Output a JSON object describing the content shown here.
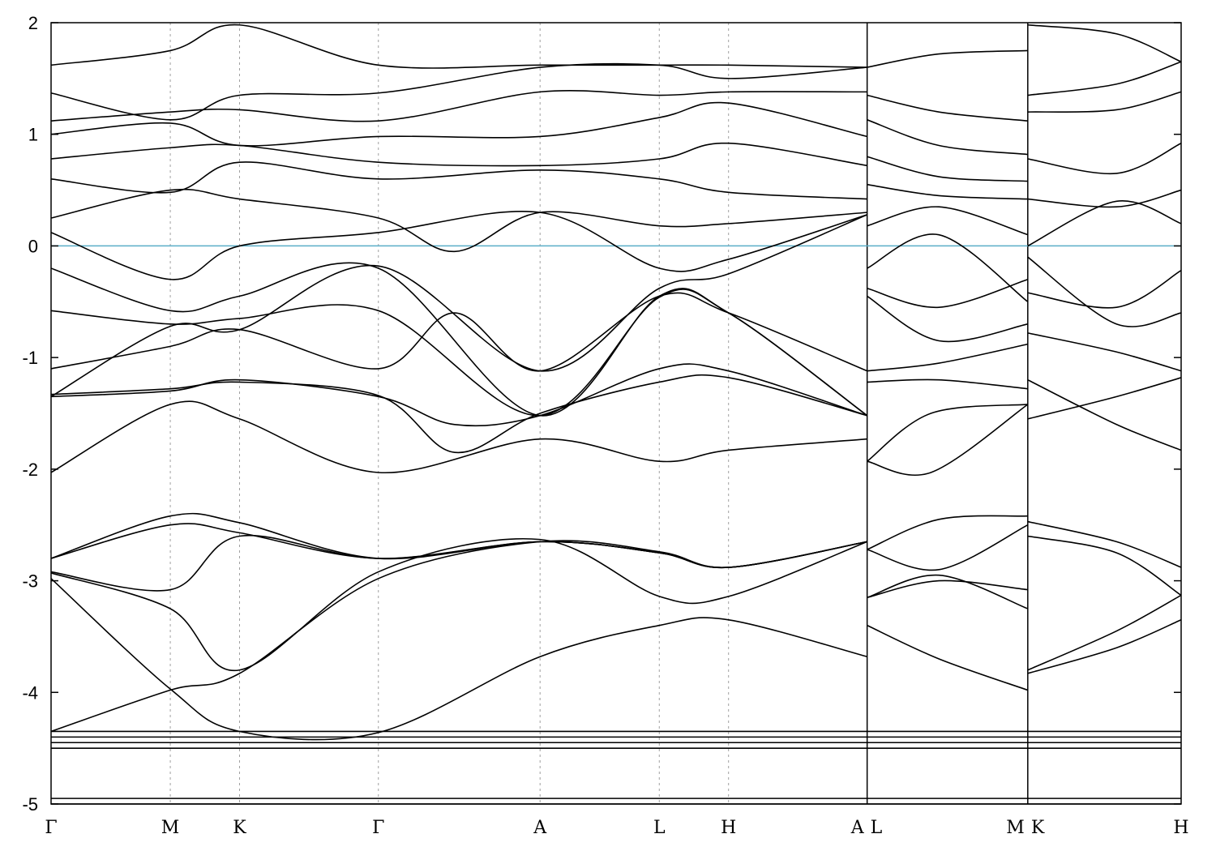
{
  "chart_data": {
    "type": "line",
    "title": "",
    "xlabel": "",
    "ylabel": "",
    "ylim": [
      -5,
      2
    ],
    "yticks": [
      2,
      1,
      0,
      -1,
      -2,
      -3,
      -4,
      -5
    ],
    "ytick_labels": [
      "2",
      "1",
      "0",
      "-1",
      "-2",
      "-3",
      "-4",
      "-5"
    ],
    "fermi_level": 0,
    "xlim": [
      0,
      14
    ],
    "high_symmetry_points": [
      {
        "label": "Γ",
        "x": 0
      },
      {
        "label": "M",
        "x": 1.477
      },
      {
        "label": "K",
        "x": 2.335
      },
      {
        "label": "Γ",
        "x": 4.055
      },
      {
        "label": "A",
        "x": 6.058
      },
      {
        "label": "L",
        "x": 7.535
      },
      {
        "label": "H",
        "x": 8.393
      },
      {
        "label": "A",
        "x": 10.11
      },
      {
        "label": "L",
        "x": 10.11
      },
      {
        "label": "M",
        "x": 12.1
      },
      {
        "label": "K",
        "x": 12.1
      },
      {
        "label": "H",
        "x": 14.0
      }
    ],
    "discontinuities": [
      10.11,
      12.1
    ],
    "grid": "vertical dashed at high-symmetry points",
    "legend": "none",
    "colors": {
      "bands": "#000000",
      "fermi": "#5aaec8",
      "grid": "#a0a0a0"
    },
    "series": [
      {
        "x": [
          0,
          1.477,
          2.335,
          4.055,
          6.058,
          7.535,
          8.393,
          10.11
        ],
        "values": [
          -4.35,
          -3.98,
          -3.83,
          -2.98,
          -2.65,
          -2.74,
          -2.88,
          -2.65
        ]
      },
      {
        "x": [
          0,
          1.477,
          2.335,
          4.055,
          6.058,
          7.535,
          8.393,
          10.11
        ],
        "values": [
          -2.98,
          -3.97,
          -4.35,
          -4.36,
          -3.68,
          -3.4,
          -3.35,
          -3.68
        ]
      },
      {
        "x": [
          0,
          1.477,
          2.335,
          4.055,
          6.058,
          7.535,
          8.393,
          10.11
        ],
        "values": [
          -2.93,
          -3.25,
          -3.8,
          -2.92,
          -2.63,
          -3.14,
          -3.14,
          -2.65
        ]
      },
      {
        "x": [
          0,
          1.477,
          2.335,
          4.055,
          6.058,
          7.535,
          8.393,
          10.11
        ],
        "values": [
          -2.92,
          -3.08,
          -2.6,
          -2.8,
          -2.65,
          -2.75,
          -2.88,
          -2.65
        ]
      },
      {
        "x": [
          0,
          1.477,
          2.335,
          4.055,
          6.058,
          7.535,
          8.393,
          10.11
        ],
        "values": [
          -2.8,
          -2.42,
          -2.48,
          -2.8,
          -2.65,
          -2.75,
          -2.88,
          -2.65
        ]
      },
      {
        "x": [
          0,
          1.477,
          2.335,
          4.055,
          6.058,
          7.535,
          8.393,
          10.11
        ],
        "values": [
          -2.8,
          -2.5,
          -2.57,
          -2.8,
          -2.65,
          -2.75,
          -2.88,
          -2.65
        ]
      },
      {
        "x": [
          0,
          1.477,
          2.335,
          4.055,
          6.058,
          7.535,
          8.393,
          10.11
        ],
        "values": [
          -2.03,
          -1.42,
          -1.55,
          -2.03,
          -1.73,
          -1.93,
          -1.83,
          -1.73
        ]
      },
      {
        "x": [
          0,
          1.477,
          2.335,
          4.055,
          5.0,
          6.058,
          7.535,
          8.393,
          10.11
        ],
        "values": [
          -1.35,
          -1.3,
          -1.2,
          -1.35,
          -1.6,
          -1.52,
          -1.1,
          -1.12,
          -1.52
        ]
      },
      {
        "x": [
          0,
          1.477,
          2.335,
          4.055,
          5.0,
          6.058,
          7.535,
          8.393,
          10.11
        ],
        "values": [
          -1.33,
          -1.28,
          -1.22,
          -1.34,
          -1.85,
          -1.5,
          -1.22,
          -1.18,
          -1.52
        ]
      },
      {
        "x": [
          0,
          1.477,
          2.335,
          4.055,
          5.0,
          6.058,
          7.535,
          8.393,
          10.11
        ],
        "values": [
          -1.1,
          -0.9,
          -0.75,
          -1.1,
          -0.6,
          -1.12,
          -0.45,
          -0.6,
          -1.12
        ]
      },
      {
        "x": [
          0,
          1.477,
          2.335,
          4.055,
          6.058,
          7.535,
          8.393,
          10.11
        ],
        "values": [
          -0.58,
          -0.7,
          -0.65,
          -0.58,
          -1.52,
          -0.46,
          -0.6,
          -1.52
        ]
      },
      {
        "x": [
          0,
          1.477,
          2.335,
          4.055,
          6.058,
          7.535,
          8.393,
          10.11
        ],
        "values": [
          -0.2,
          -0.58,
          -0.45,
          -0.2,
          -1.52,
          -0.45,
          -0.6,
          -1.52
        ]
      },
      {
        "x": [
          0,
          1.477,
          2.335,
          4.055,
          6.058,
          7.535,
          8.393,
          10.11
        ],
        "values": [
          -1.35,
          -0.72,
          -0.75,
          -0.18,
          -1.12,
          -0.38,
          -0.25,
          0.28
        ]
      },
      {
        "x": [
          0,
          1.477,
          2.335,
          4.055,
          6.058,
          7.535,
          8.393,
          10.11
        ],
        "values": [
          0.12,
          -0.3,
          0.0,
          0.12,
          0.3,
          -0.2,
          -0.12,
          0.28
        ]
      },
      {
        "x": [
          0,
          1.477,
          2.335,
          4.055,
          5.0,
          6.058,
          7.535,
          8.393,
          10.11
        ],
        "values": [
          0.25,
          0.5,
          0.42,
          0.25,
          -0.05,
          0.3,
          0.18,
          0.2,
          0.3
        ]
      },
      {
        "x": [
          0,
          1.477,
          2.335,
          4.055,
          6.058,
          7.535,
          8.393,
          10.11
        ],
        "values": [
          0.6,
          0.48,
          0.75,
          0.6,
          0.68,
          0.6,
          0.48,
          0.42
        ]
      },
      {
        "x": [
          0,
          1.477,
          2.335,
          4.055,
          6.058,
          7.535,
          8.393,
          10.11
        ],
        "values": [
          0.78,
          0.88,
          0.9,
          0.75,
          0.72,
          0.78,
          0.92,
          0.72
        ]
      },
      {
        "x": [
          0,
          1.477,
          2.335,
          4.055,
          6.058,
          7.535,
          8.393,
          10.11
        ],
        "values": [
          1.0,
          1.1,
          0.9,
          0.98,
          0.98,
          1.15,
          1.28,
          0.98
        ]
      },
      {
        "x": [
          0,
          1.477,
          2.335,
          4.055,
          6.058,
          7.535,
          8.393,
          10.11
        ],
        "values": [
          1.12,
          1.2,
          1.22,
          1.12,
          1.38,
          1.35,
          1.38,
          1.38
        ]
      },
      {
        "x": [
          0,
          1.477,
          2.335,
          4.055,
          6.058,
          7.535,
          8.393,
          10.11
        ],
        "values": [
          1.37,
          1.13,
          1.35,
          1.37,
          1.6,
          1.62,
          1.5,
          1.6
        ]
      },
      {
        "x": [
          0,
          1.477,
          2.335,
          4.055,
          6.058,
          7.535,
          8.393,
          10.11
        ],
        "values": [
          1.62,
          1.75,
          1.98,
          1.62,
          1.62,
          1.62,
          1.62,
          1.6
        ]
      },
      {
        "x": [
          10.11,
          11.0,
          12.1
        ],
        "values": [
          -2.72,
          -2.45,
          -2.42
        ]
      },
      {
        "x": [
          10.11,
          11.0,
          12.1
        ],
        "values": [
          -2.72,
          -2.9,
          -2.5
        ]
      },
      {
        "x": [
          10.11,
          11.0,
          12.1
        ],
        "values": [
          -3.15,
          -3.0,
          -3.08
        ]
      },
      {
        "x": [
          10.11,
          11.0,
          12.1
        ],
        "values": [
          -3.15,
          -2.95,
          -3.25
        ]
      },
      {
        "x": [
          10.11,
          11.0,
          12.1
        ],
        "values": [
          -3.4,
          -3.7,
          -3.98
        ]
      },
      {
        "x": [
          10.11,
          10.9,
          12.1
        ],
        "values": [
          -1.93,
          -2.03,
          -1.42
        ]
      },
      {
        "x": [
          10.11,
          10.9,
          12.1
        ],
        "values": [
          -1.93,
          -1.5,
          -1.42
        ]
      },
      {
        "x": [
          10.11,
          11.0,
          12.1
        ],
        "values": [
          -1.22,
          -1.2,
          -1.28
        ]
      },
      {
        "x": [
          10.11,
          11.0,
          12.1
        ],
        "values": [
          -1.12,
          -1.05,
          -0.88
        ]
      },
      {
        "x": [
          10.11,
          11.0,
          12.1
        ],
        "values": [
          -0.45,
          -0.85,
          -0.7
        ]
      },
      {
        "x": [
          10.11,
          11.0,
          12.1
        ],
        "values": [
          -0.38,
          -0.55,
          -0.3
        ]
      },
      {
        "x": [
          10.11,
          11.0,
          12.1
        ],
        "values": [
          -0.2,
          0.1,
          -0.5
        ]
      },
      {
        "x": [
          10.11,
          11.0,
          12.1
        ],
        "values": [
          0.18,
          0.35,
          0.1
        ]
      },
      {
        "x": [
          10.11,
          11.0,
          12.1
        ],
        "values": [
          0.55,
          0.45,
          0.42
        ]
      },
      {
        "x": [
          10.11,
          11.0,
          12.1
        ],
        "values": [
          0.8,
          0.62,
          0.58
        ]
      },
      {
        "x": [
          10.11,
          11.0,
          12.1
        ],
        "values": [
          1.13,
          0.9,
          0.82
        ]
      },
      {
        "x": [
          10.11,
          11.0,
          12.1
        ],
        "values": [
          1.35,
          1.2,
          1.12
        ]
      },
      {
        "x": [
          10.11,
          11.0,
          12.1
        ],
        "values": [
          1.6,
          1.72,
          1.75
        ]
      },
      {
        "x": [
          12.1,
          13.2,
          14.0
        ],
        "values": [
          -3.83,
          -3.6,
          -3.35
        ]
      },
      {
        "x": [
          12.1,
          13.2,
          14.0
        ],
        "values": [
          -3.8,
          -3.45,
          -3.13
        ]
      },
      {
        "x": [
          12.1,
          13.2,
          14.0
        ],
        "values": [
          -2.6,
          -2.75,
          -3.13
        ]
      },
      {
        "x": [
          12.1,
          13.2,
          14.0
        ],
        "values": [
          -2.47,
          -2.65,
          -2.88
        ]
      },
      {
        "x": [
          12.1,
          13.2,
          14.0
        ],
        "values": [
          -1.55,
          -1.35,
          -1.18
        ]
      },
      {
        "x": [
          12.1,
          13.2,
          14.0
        ],
        "values": [
          -1.2,
          -1.6,
          -1.83
        ]
      },
      {
        "x": [
          12.1,
          13.2,
          14.0
        ],
        "values": [
          -0.78,
          -0.95,
          -1.12
        ]
      },
      {
        "x": [
          12.1,
          13.2,
          14.0
        ],
        "values": [
          -0.42,
          -0.55,
          -0.22
        ]
      },
      {
        "x": [
          12.1,
          13.2,
          14.0
        ],
        "values": [
          -0.1,
          -0.7,
          -0.6
        ]
      },
      {
        "x": [
          12.1,
          13.2,
          14.0
        ],
        "values": [
          0.0,
          0.4,
          0.2
        ]
      },
      {
        "x": [
          12.1,
          13.2,
          14.0
        ],
        "values": [
          0.42,
          0.35,
          0.5
        ]
      },
      {
        "x": [
          12.1,
          13.2,
          14.0
        ],
        "values": [
          0.78,
          0.65,
          0.92
        ]
      },
      {
        "x": [
          12.1,
          13.2,
          14.0
        ],
        "values": [
          1.2,
          1.22,
          1.38
        ]
      },
      {
        "x": [
          12.1,
          13.2,
          14.0
        ],
        "values": [
          1.35,
          1.45,
          1.65
        ]
      },
      {
        "x": [
          12.1,
          13.2,
          14.0
        ],
        "values": [
          1.98,
          1.9,
          1.65
        ]
      },
      {
        "x": [
          0,
          14.0
        ],
        "values": [
          -4.35,
          -4.35
        ]
      },
      {
        "x": [
          0,
          14.0
        ],
        "values": [
          -4.4,
          -4.4
        ]
      },
      {
        "x": [
          0,
          14.0
        ],
        "values": [
          -4.45,
          -4.45
        ]
      },
      {
        "x": [
          0,
          14.0
        ],
        "values": [
          -4.5,
          -4.5
        ]
      },
      {
        "x": [
          0,
          14.0
        ],
        "values": [
          -4.95,
          -4.95
        ]
      },
      {
        "x": [
          0,
          14.0
        ],
        "values": [
          -5.0,
          -5.0
        ]
      }
    ]
  }
}
